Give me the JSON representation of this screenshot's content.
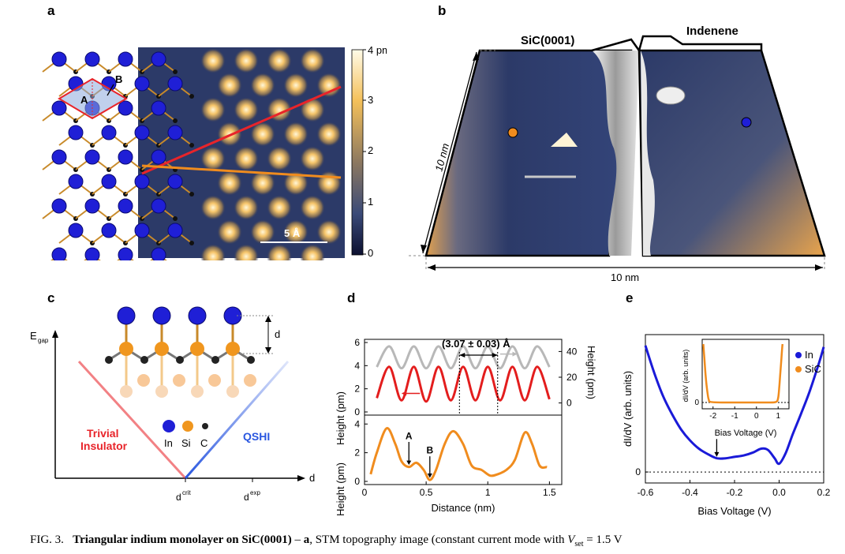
{
  "panels": {
    "a": {
      "letter": "a",
      "label_A": "A",
      "label_B": "B",
      "scale_bar": "5 Å",
      "colorbar_ticks": [
        "4 pm",
        "3",
        "2",
        "1",
        "0"
      ]
    },
    "b": {
      "letter": "b",
      "left_label": "SiC(0001)",
      "right_label": "Indenene",
      "side_scale": "10 nm",
      "bottom_scale": "10 nm"
    },
    "c": {
      "letter": "c",
      "y_axis": "E",
      "y_axis_sub": "gap",
      "x_axis": "d",
      "height_label": "d",
      "left_phase_1": "Trivial",
      "left_phase_2": "Insulator",
      "right_phase": "QSHI",
      "legend": [
        "In",
        "Si",
        "C"
      ],
      "tick_1_main": "d",
      "tick_1_sup": "crit",
      "tick_2_main": "d",
      "tick_2_sup": "exp",
      "colors": {
        "In": "#1f1fd6",
        "Si": "#f0961e",
        "C": "#222222",
        "trivial": "#e8242a",
        "qshi": "#2a57e0"
      }
    },
    "d": {
      "letter": "d",
      "annotation": "(3.07 ± 0.03) Å",
      "label_A": "A",
      "label_B": "B",
      "ylabel_left": "Height (pm)",
      "ylabel_right": "Height (pm)",
      "xlabel": "Distance (nm)",
      "upper_left_ticks": [
        "6",
        "4",
        "2",
        "0"
      ],
      "upper_right_ticks": [
        "40",
        "20",
        "0"
      ],
      "lower_left_ticks": [
        "4",
        "2",
        "0"
      ],
      "x_ticks": [
        "0",
        "0.5",
        "1",
        "1.5"
      ]
    },
    "e": {
      "letter": "e",
      "ylabel": "dI/dV (arb. units)",
      "xlabel": "Bias Voltage (V)",
      "x_ticks": [
        "-0.6",
        "-0.4",
        "-0.2",
        "0.0",
        "0.2"
      ],
      "y_tick": "0",
      "legend_in": "In",
      "legend_sic": "SiC",
      "inset_ylabel": "dI/dV (arb. units)",
      "inset_xlabel": "Bias Voltage (V)",
      "inset_x_ticks": [
        "-2",
        "-1",
        "0",
        "1"
      ],
      "inset_y_tick": "0"
    }
  },
  "chart_data": [
    {
      "type": "line",
      "panel": "d-upper",
      "title": "",
      "xlabel": "Distance (nm)",
      "ylabel": "Height (pm)",
      "xlim": [
        0,
        1.6
      ],
      "ylim": [
        0,
        6
      ],
      "y2lim": [
        -7,
        47
      ],
      "series": [
        {
          "color": "#e31d1d",
          "axis": "left",
          "x": [
            0.1,
            0.2,
            0.3,
            0.4,
            0.5,
            0.6,
            0.7,
            0.8,
            0.9,
            1.0,
            1.1,
            1.2,
            1.3,
            1.4,
            1.5
          ],
          "y": [
            1.2,
            3.9,
            1.0,
            3.9,
            0.9,
            3.9,
            1.0,
            3.9,
            1.0,
            3.9,
            1.0,
            3.9,
            1.0,
            3.9,
            1.1
          ]
        },
        {
          "color": "#b8b8b8",
          "axis": "right",
          "x": [
            0.1,
            0.2,
            0.3,
            0.4,
            0.5,
            0.6,
            0.7,
            0.8,
            0.9,
            1.0,
            1.1,
            1.2,
            1.3,
            1.4,
            1.5
          ],
          "y": [
            28,
            44,
            27,
            44,
            27,
            44,
            27,
            44,
            27,
            44,
            27,
            44,
            27,
            44,
            28
          ]
        }
      ],
      "annotations": [
        {
          "text": "(3.07 ± 0.03) Å",
          "x_from": 0.77,
          "x_to": 1.08
        }
      ]
    },
    {
      "type": "line",
      "panel": "d-lower",
      "xlabel": "Distance (nm)",
      "ylabel": "Height (pm)",
      "xlim": [
        0,
        1.6
      ],
      "ylim": [
        0,
        4.4
      ],
      "x_ticks": [
        0,
        0.5,
        1,
        1.5
      ],
      "series": [
        {
          "color": "#f08c1e",
          "x": [
            0.05,
            0.1,
            0.18,
            0.25,
            0.3,
            0.36,
            0.42,
            0.48,
            0.53,
            0.58,
            0.65,
            0.72,
            0.8,
            0.87,
            0.95,
            1.02,
            1.08,
            1.15,
            1.22,
            1.3,
            1.36,
            1.42,
            1.48
          ],
          "y": [
            0.5,
            2.0,
            3.7,
            2.6,
            1.4,
            1.0,
            1.3,
            0.8,
            0.1,
            0.8,
            2.6,
            3.5,
            2.6,
            1.1,
            0.8,
            0.4,
            0.5,
            0.8,
            1.5,
            3.4,
            2.6,
            1.1,
            1.0
          ]
        }
      ],
      "annotations": [
        {
          "text": "A",
          "x": 0.36
        },
        {
          "text": "B",
          "x": 0.53
        }
      ]
    },
    {
      "type": "line",
      "panel": "e",
      "xlabel": "Bias Voltage (V)",
      "ylabel": "dI/dV (arb. units)",
      "xlim": [
        -0.6,
        0.2
      ],
      "ylim": [
        -0.08,
        1.0
      ],
      "x_ticks": [
        -0.6,
        -0.4,
        -0.2,
        0.0,
        0.2
      ],
      "series": [
        {
          "name": "In",
          "color": "#1a1ad8",
          "x": [
            -0.6,
            -0.56,
            -0.52,
            -0.48,
            -0.44,
            -0.4,
            -0.36,
            -0.32,
            -0.28,
            -0.24,
            -0.2,
            -0.16,
            -0.12,
            -0.08,
            -0.05,
            -0.02,
            0.0,
            0.03,
            0.06,
            0.1,
            0.14,
            0.18,
            0.2
          ],
          "y": [
            0.92,
            0.72,
            0.55,
            0.42,
            0.31,
            0.23,
            0.17,
            0.13,
            0.1,
            0.1,
            0.11,
            0.12,
            0.14,
            0.17,
            0.16,
            0.1,
            0.06,
            0.14,
            0.27,
            0.43,
            0.6,
            0.8,
            0.91
          ]
        }
      ]
    },
    {
      "type": "scatter",
      "panel": "e-inset",
      "xlabel": "Bias Voltage (V)",
      "ylabel": "dI/dV (arb. units)",
      "xlim": [
        -2.5,
        1.5
      ],
      "x_ticks": [
        -2,
        -1,
        0,
        1
      ],
      "series": [
        {
          "name": "SiC",
          "color": "#f08c1e",
          "x": [
            -2.45,
            -2.4,
            -2.35,
            -2.3,
            -2.25,
            -2.2,
            -2.1,
            -1.5,
            -0.5,
            0.5,
            0.9,
            1.0,
            1.05,
            1.1,
            1.15,
            1.2
          ],
          "y": [
            1.0,
            0.75,
            0.5,
            0.3,
            0.15,
            0.05,
            0.01,
            0.0,
            0.0,
            0.0,
            0.01,
            0.08,
            0.25,
            0.5,
            0.75,
            1.0
          ]
        }
      ]
    }
  ]
}
